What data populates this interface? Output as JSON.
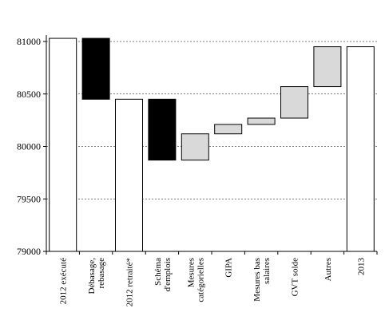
{
  "chart_data": {
    "type": "bar",
    "subtype": "waterfall",
    "title": "",
    "xlabel": "",
    "ylabel": "",
    "ylim": [
      79000,
      81000
    ],
    "yticks": [
      79000,
      79500,
      80000,
      80500,
      81000
    ],
    "grid": "horizontal-dotted",
    "categories": [
      [
        "2012 exécuté"
      ],
      [
        "Débasage,",
        "rebasage"
      ],
      [
        "2012 retraité*"
      ],
      [
        "Schéma",
        "d'emplois"
      ],
      [
        "Mesures",
        "catégorielles"
      ],
      [
        "GIPA"
      ],
      [
        "Mesures bas",
        "salaires"
      ],
      [
        "GVT solde"
      ],
      [
        "Autres"
      ],
      [
        "2013"
      ]
    ],
    "bars": [
      {
        "low": 79000,
        "high": 81030,
        "kind": "total",
        "color": "#ffffff"
      },
      {
        "low": 80450,
        "high": 81030,
        "kind": "decrease",
        "color": "#000000"
      },
      {
        "low": 79000,
        "high": 80450,
        "kind": "total",
        "color": "#ffffff"
      },
      {
        "low": 79870,
        "high": 80450,
        "kind": "decrease",
        "color": "#000000"
      },
      {
        "low": 79870,
        "high": 80120,
        "kind": "increase",
        "color": "#d9d9d9"
      },
      {
        "low": 80120,
        "high": 80210,
        "kind": "increase",
        "color": "#d9d9d9"
      },
      {
        "low": 80210,
        "high": 80270,
        "kind": "increase",
        "color": "#d9d9d9"
      },
      {
        "low": 80270,
        "high": 80570,
        "kind": "increase",
        "color": "#d9d9d9"
      },
      {
        "low": 80570,
        "high": 80950,
        "kind": "increase",
        "color": "#d9d9d9"
      },
      {
        "low": 79000,
        "high": 80950,
        "kind": "total",
        "color": "#ffffff"
      }
    ]
  }
}
